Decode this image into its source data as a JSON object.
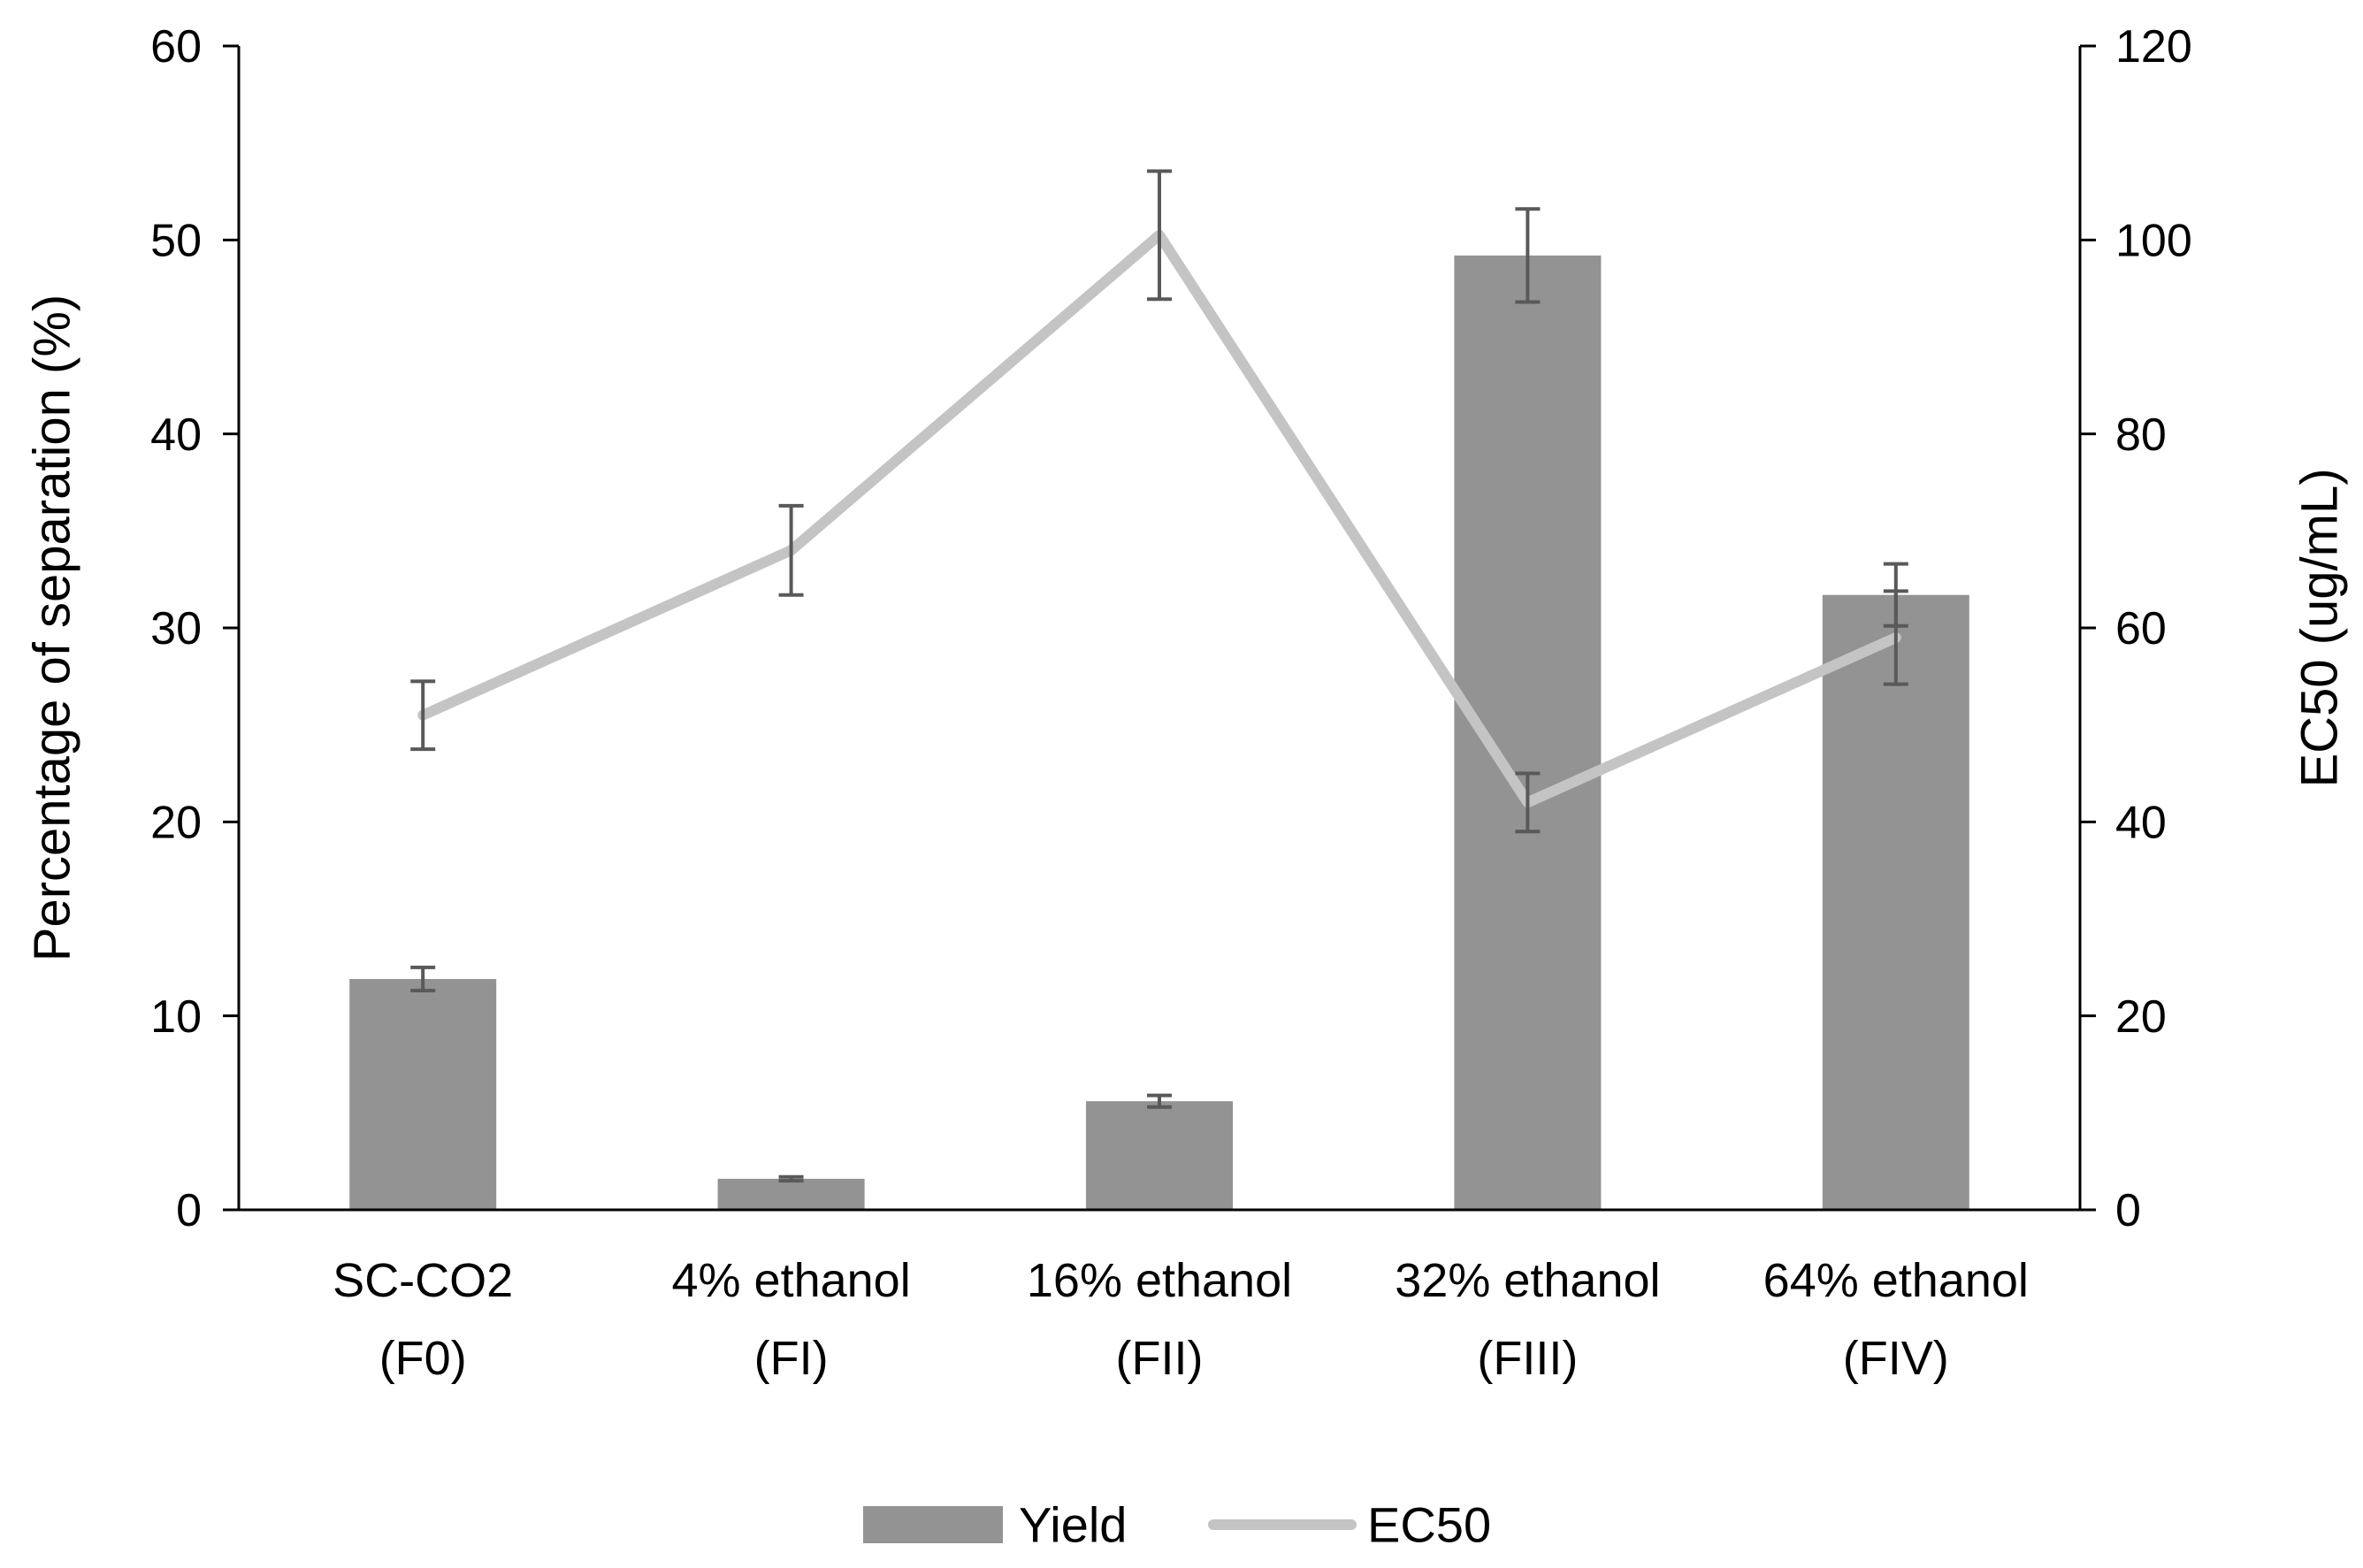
{
  "chart_data": {
    "type": "bar-line-combo",
    "categories": [
      [
        "SC-CO2",
        "(F0)"
      ],
      [
        "4% ethanol",
        "(FI)"
      ],
      [
        "16% ethanol",
        "(FII)"
      ],
      [
        "32% ethanol",
        "(FIII)"
      ],
      [
        "64% ethanol",
        "(FIV)"
      ]
    ],
    "series": [
      {
        "name": "Yield",
        "kind": "bar",
        "axis": "left",
        "color": "#939393",
        "values": [
          11.9,
          1.6,
          5.6,
          49.2,
          31.7
        ],
        "errors": [
          0.6,
          0.1,
          0.3,
          2.4,
          1.6
        ]
      },
      {
        "name": "EC50",
        "kind": "line",
        "axis": "right",
        "color": "#c4c4c4",
        "values": [
          51.0,
          68.0,
          100.5,
          42.0,
          59.0
        ],
        "errors": [
          3.5,
          4.6,
          6.6,
          3.0,
          4.8
        ]
      }
    ],
    "y_left": {
      "label": "Percentage of separation  (%)",
      "min": 0,
      "max": 60,
      "ticks": [
        0,
        10,
        20,
        30,
        40,
        50,
        60
      ]
    },
    "y_right": {
      "label": "EC50 (ug/mL)",
      "min": 0,
      "max": 120,
      "ticks": [
        0,
        20,
        40,
        60,
        80,
        100,
        120
      ]
    },
    "errorbar_color": "#595959",
    "axis_color": "#000000",
    "legend": {
      "position": "bottom",
      "items": [
        "Yield",
        "EC50"
      ]
    },
    "grid": false
  }
}
